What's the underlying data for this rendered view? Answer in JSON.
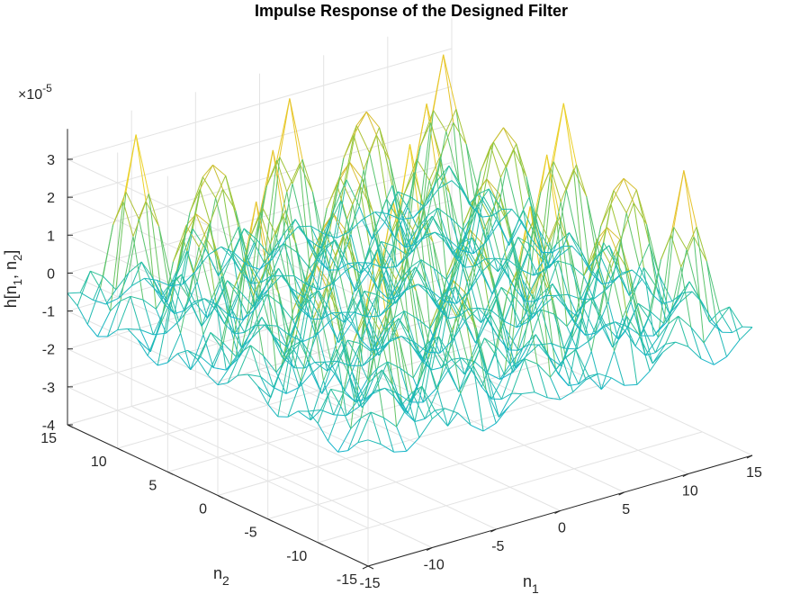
{
  "chart_data": {
    "type": "mesh",
    "title": "Impulse Response of the Designed Filter",
    "xlabel": "n",
    "xlabel_sub": "1",
    "ylabel": "n",
    "ylabel_sub": "2",
    "zlabel": "h[n",
    "zlabel_sub1": "1",
    "zlabel_mid": ", n",
    "zlabel_sub2": "2",
    "zlabel_end": "]",
    "exponent_prefix": "×10",
    "exponent": "-5",
    "xlim": [
      -15,
      15
    ],
    "ylim": [
      -15,
      15
    ],
    "zlim": [
      -4,
      3.8
    ],
    "x_ticks": [
      "-15",
      "-10",
      "-5",
      "0",
      "5",
      "10",
      "15"
    ],
    "y_ticks": [
      "-15",
      "-10",
      "-5",
      "0",
      "5",
      "10",
      "15"
    ],
    "z_ticks": [
      "-4",
      "-3",
      "-2",
      "-1",
      "0",
      "1",
      "2",
      "3"
    ],
    "grid": true,
    "colormap": [
      "#3e26a8",
      "#2e86f0",
      "#14b3d0",
      "#2dc19a",
      "#8fc73c",
      "#e4bd2f",
      "#f9fb15"
    ],
    "surface": {
      "n1": [
        -15,
        15
      ],
      "n2": [
        -15,
        15
      ],
      "approximation": "h[n1,n2] ~= 0.28 * (cos(pi*n1/3) + cos(pi*n2/3)) + 0.38 * cos(pi*n1/3) * cos(pi*n2/3) + 0.18 * cos(pi*n1/2) * cos(pi*n2/2), in units of 1e-5",
      "peak_value": 3.8,
      "min_value": -4.0
    }
  }
}
